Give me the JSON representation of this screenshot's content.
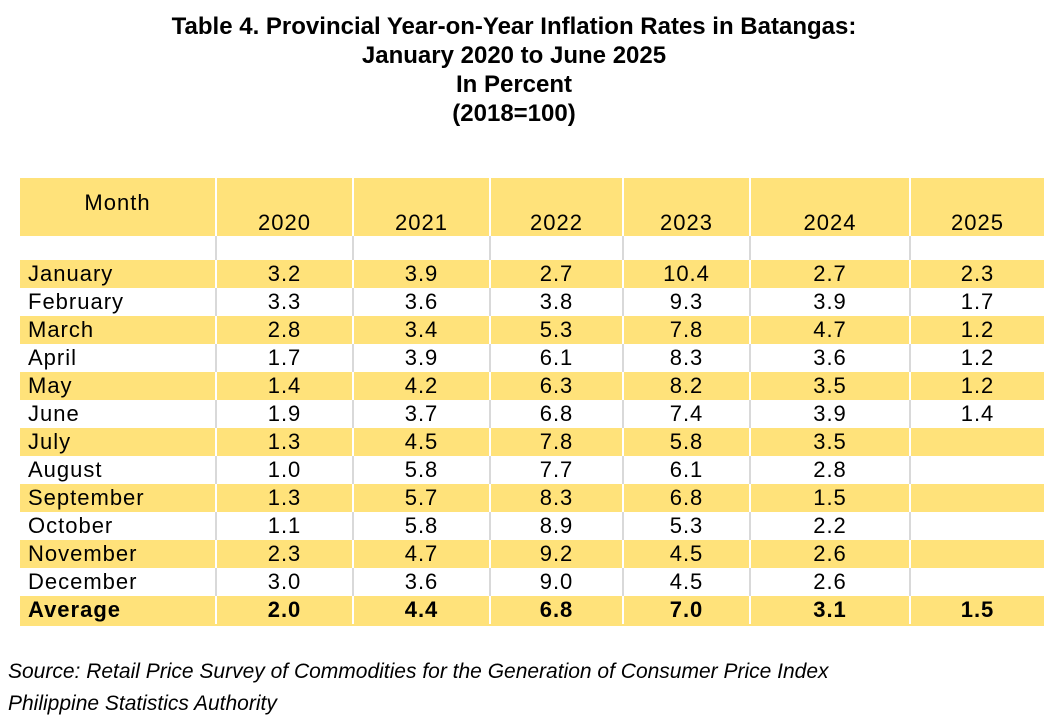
{
  "title": {
    "line1": "Table 4. Provincial Year-on-Year Inflation Rates in Batangas:",
    "line2": "January 2020 to June 2025",
    "line3": "In Percent",
    "line4": "(2018=100)"
  },
  "table": {
    "month_header": "Month",
    "years": [
      "2020",
      "2021",
      "2022",
      "2023",
      "2024",
      "2025"
    ],
    "rows": [
      {
        "month": "January",
        "values": [
          "3.2",
          "3.9",
          "2.7",
          "10.4",
          "2.7",
          "2.3"
        ]
      },
      {
        "month": "February",
        "values": [
          "3.3",
          "3.6",
          "3.8",
          "9.3",
          "3.9",
          "1.7"
        ]
      },
      {
        "month": "March",
        "values": [
          "2.8",
          "3.4",
          "5.3",
          "7.8",
          "4.7",
          "1.2"
        ]
      },
      {
        "month": "April",
        "values": [
          "1.7",
          "3.9",
          "6.1",
          "8.3",
          "3.6",
          "1.2"
        ]
      },
      {
        "month": "May",
        "values": [
          "1.4",
          "4.2",
          "6.3",
          "8.2",
          "3.5",
          "1.2"
        ]
      },
      {
        "month": "June",
        "values": [
          "1.9",
          "3.7",
          "6.8",
          "7.4",
          "3.9",
          "1.4"
        ]
      },
      {
        "month": "July",
        "values": [
          "1.3",
          "4.5",
          "7.8",
          "5.8",
          "3.5",
          ""
        ]
      },
      {
        "month": "August",
        "values": [
          "1.0",
          "5.8",
          "7.7",
          "6.1",
          "2.8",
          ""
        ]
      },
      {
        "month": "September",
        "values": [
          "1.3",
          "5.7",
          "8.3",
          "6.8",
          "1.5",
          ""
        ]
      },
      {
        "month": "October",
        "values": [
          "1.1",
          "5.8",
          "8.9",
          "5.3",
          "2.2",
          ""
        ]
      },
      {
        "month": "November",
        "values": [
          "2.3",
          "4.7",
          "9.2",
          "4.5",
          "2.6",
          ""
        ]
      },
      {
        "month": "December",
        "values": [
          "3.0",
          "3.6",
          "9.0",
          "4.5",
          "2.6",
          ""
        ]
      }
    ],
    "average": {
      "label": "Average",
      "values": [
        "2.0",
        "4.4",
        "6.8",
        "7.0",
        "3.1",
        "1.5"
      ]
    }
  },
  "source": {
    "line1": "Source: Retail Price Survey of Commodities for the Generation of Consumer Price Index",
    "line2": "Philippine Statistics Authority"
  },
  "colors": {
    "row_highlight": "#ffe27a",
    "row_plain": "#ffffff"
  }
}
